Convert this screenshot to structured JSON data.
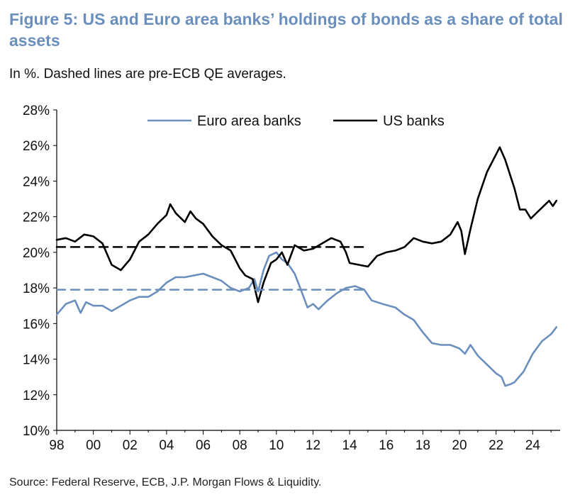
{
  "header": {
    "title": "Figure 5: US and Euro area banks’ holdings of bonds as a share of total assets",
    "subtitle": "In %. Dashed lines are pre-ECB QE averages."
  },
  "footer": {
    "source": "Source: Federal Reserve, ECB, J.P. Morgan Flows & Liquidity."
  },
  "chart_data": {
    "type": "line",
    "title": "Figure 5: US and Euro area banks’ holdings of bonds as a share of total assets",
    "subtitle": "In %. Dashed lines are pre-ECB QE averages.",
    "xlim": [
      1998,
      2025.5
    ],
    "ylim": [
      10,
      28
    ],
    "x_ticks": [
      1998,
      2000,
      2002,
      2004,
      2006,
      2008,
      2010,
      2012,
      2014,
      2016,
      2018,
      2020,
      2022,
      2024
    ],
    "x_tick_labels": [
      "98",
      "00",
      "02",
      "04",
      "06",
      "08",
      "10",
      "12",
      "14",
      "16",
      "18",
      "20",
      "22",
      "24"
    ],
    "y_ticks": [
      10,
      12,
      14,
      16,
      18,
      20,
      22,
      24,
      26,
      28
    ],
    "y_tick_labels": [
      "10%",
      "12%",
      "14%",
      "16%",
      "18%",
      "20%",
      "22%",
      "24%",
      "26%",
      "28%"
    ],
    "legend_position": "top",
    "grid": false,
    "series": [
      {
        "name": "Euro area banks",
        "color": "#6b8fbd",
        "style": "solid",
        "points": [
          [
            1998.0,
            16.5
          ],
          [
            1998.5,
            17.1
          ],
          [
            1999.0,
            17.3
          ],
          [
            1999.3,
            16.6
          ],
          [
            1999.6,
            17.2
          ],
          [
            2000.0,
            17.0
          ],
          [
            2000.5,
            17.0
          ],
          [
            2001.0,
            16.7
          ],
          [
            2001.5,
            17.0
          ],
          [
            2002.0,
            17.3
          ],
          [
            2002.5,
            17.5
          ],
          [
            2003.0,
            17.5
          ],
          [
            2003.5,
            17.8
          ],
          [
            2004.0,
            18.3
          ],
          [
            2004.5,
            18.6
          ],
          [
            2005.0,
            18.6
          ],
          [
            2005.5,
            18.7
          ],
          [
            2006.0,
            18.8
          ],
          [
            2006.5,
            18.6
          ],
          [
            2007.0,
            18.4
          ],
          [
            2007.5,
            18.0
          ],
          [
            2008.0,
            17.8
          ],
          [
            2008.5,
            18.0
          ],
          [
            2008.8,
            18.5
          ],
          [
            2009.0,
            17.8
          ],
          [
            2009.3,
            19.0
          ],
          [
            2009.6,
            19.8
          ],
          [
            2010.0,
            20.0
          ],
          [
            2010.3,
            19.6
          ],
          [
            2010.6,
            19.4
          ],
          [
            2011.0,
            18.8
          ],
          [
            2011.3,
            18.0
          ],
          [
            2011.7,
            16.9
          ],
          [
            2012.0,
            17.1
          ],
          [
            2012.3,
            16.8
          ],
          [
            2012.8,
            17.3
          ],
          [
            2013.3,
            17.7
          ],
          [
            2013.8,
            18.0
          ],
          [
            2014.3,
            18.1
          ],
          [
            2014.8,
            17.9
          ],
          [
            2015.2,
            17.3
          ],
          [
            2015.8,
            17.1
          ],
          [
            2016.5,
            16.9
          ],
          [
            2017.0,
            16.5
          ],
          [
            2017.5,
            16.2
          ],
          [
            2018.0,
            15.5
          ],
          [
            2018.5,
            14.9
          ],
          [
            2019.0,
            14.8
          ],
          [
            2019.5,
            14.8
          ],
          [
            2020.0,
            14.6
          ],
          [
            2020.3,
            14.3
          ],
          [
            2020.6,
            14.8
          ],
          [
            2021.0,
            14.2
          ],
          [
            2021.5,
            13.7
          ],
          [
            2022.0,
            13.2
          ],
          [
            2022.3,
            13.0
          ],
          [
            2022.5,
            12.5
          ],
          [
            2022.8,
            12.6
          ],
          [
            2023.0,
            12.7
          ],
          [
            2023.5,
            13.3
          ],
          [
            2024.0,
            14.3
          ],
          [
            2024.5,
            15.0
          ],
          [
            2025.0,
            15.4
          ],
          [
            2025.3,
            15.8
          ]
        ]
      },
      {
        "name": "US banks",
        "color": "#000000",
        "style": "solid",
        "points": [
          [
            1998.0,
            20.7
          ],
          [
            1998.5,
            20.8
          ],
          [
            1999.0,
            20.6
          ],
          [
            1999.5,
            21.0
          ],
          [
            2000.0,
            20.9
          ],
          [
            2000.5,
            20.5
          ],
          [
            2001.0,
            19.3
          ],
          [
            2001.5,
            19.0
          ],
          [
            2002.0,
            19.6
          ],
          [
            2002.5,
            20.6
          ],
          [
            2003.0,
            21.0
          ],
          [
            2003.5,
            21.6
          ],
          [
            2004.0,
            22.1
          ],
          [
            2004.2,
            22.7
          ],
          [
            2004.5,
            22.2
          ],
          [
            2005.0,
            21.7
          ],
          [
            2005.3,
            22.3
          ],
          [
            2005.6,
            21.9
          ],
          [
            2006.0,
            21.6
          ],
          [
            2006.5,
            20.9
          ],
          [
            2007.0,
            20.4
          ],
          [
            2007.5,
            20.1
          ],
          [
            2008.0,
            19.1
          ],
          [
            2008.3,
            18.7
          ],
          [
            2008.7,
            18.5
          ],
          [
            2009.0,
            17.2
          ],
          [
            2009.3,
            18.3
          ],
          [
            2009.7,
            19.4
          ],
          [
            2010.0,
            19.6
          ],
          [
            2010.3,
            20.0
          ],
          [
            2010.6,
            19.3
          ],
          [
            2011.0,
            20.4
          ],
          [
            2011.5,
            20.1
          ],
          [
            2012.0,
            20.2
          ],
          [
            2012.5,
            20.5
          ],
          [
            2013.0,
            20.8
          ],
          [
            2013.5,
            20.6
          ],
          [
            2013.8,
            20.0
          ],
          [
            2014.0,
            19.4
          ],
          [
            2014.5,
            19.3
          ],
          [
            2015.0,
            19.2
          ],
          [
            2015.5,
            19.8
          ],
          [
            2016.0,
            20.0
          ],
          [
            2016.5,
            20.1
          ],
          [
            2017.0,
            20.3
          ],
          [
            2017.5,
            20.8
          ],
          [
            2018.0,
            20.6
          ],
          [
            2018.5,
            20.5
          ],
          [
            2019.0,
            20.6
          ],
          [
            2019.5,
            21.0
          ],
          [
            2019.9,
            21.7
          ],
          [
            2020.1,
            21.2
          ],
          [
            2020.3,
            19.9
          ],
          [
            2020.6,
            21.3
          ],
          [
            2021.0,
            23.0
          ],
          [
            2021.5,
            24.5
          ],
          [
            2022.0,
            25.5
          ],
          [
            2022.2,
            25.9
          ],
          [
            2022.5,
            25.2
          ],
          [
            2023.0,
            23.6
          ],
          [
            2023.3,
            22.4
          ],
          [
            2023.6,
            22.4
          ],
          [
            2023.9,
            21.9
          ],
          [
            2024.2,
            22.2
          ],
          [
            2024.6,
            22.6
          ],
          [
            2024.9,
            22.9
          ],
          [
            2025.1,
            22.6
          ],
          [
            2025.3,
            22.9
          ]
        ]
      },
      {
        "color": "#6b8fbd",
        "style": "dashed",
        "points": [
          [
            1998.0,
            17.9
          ],
          [
            2015.0,
            17.9
          ]
        ]
      },
      {
        "color": "#000000",
        "style": "dashed",
        "points": [
          [
            1998.0,
            20.3
          ],
          [
            2015.0,
            20.3
          ]
        ]
      }
    ],
    "legend": [
      {
        "label": "Euro area banks",
        "color": "#6b8fbd"
      },
      {
        "label": "US banks",
        "color": "#000000"
      }
    ]
  }
}
